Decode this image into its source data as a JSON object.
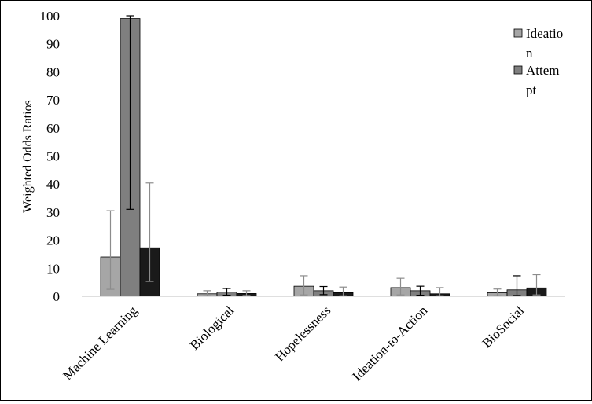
{
  "chart_data": {
    "type": "bar",
    "title": "",
    "xlabel": "",
    "ylabel": "Weighted Odds Ratios",
    "ylim": [
      0,
      100
    ],
    "yticks": [
      0,
      10,
      20,
      30,
      40,
      50,
      60,
      70,
      80,
      90,
      100
    ],
    "grid": false,
    "legend_position": "top-right",
    "categories": [
      "Machine Learning",
      "Biological",
      "Hopelessness",
      "Ideation-to-Action",
      "BioSocial"
    ],
    "series": [
      {
        "name": "Ideation",
        "color": "#a6a6a6",
        "values": [
          14,
          0.9,
          3.6,
          3.1,
          1.3
        ],
        "err_low": [
          2.5,
          0.2,
          0.5,
          0.5,
          0.2
        ],
        "err_high": [
          30.5,
          2.0,
          7.3,
          6.4,
          2.6
        ],
        "err_color": "#8c8c8c"
      },
      {
        "name": "Attempt",
        "color": "#7f7f7f",
        "values": [
          99,
          1.5,
          2.0,
          2.0,
          2.3
        ],
        "err_low": [
          31,
          0.4,
          0.6,
          0.4,
          0.3
        ],
        "err_high": [
          100,
          2.8,
          3.5,
          3.6,
          7.3
        ],
        "err_color": "#000000"
      },
      {
        "name": "",
        "color": "#1a1a1a",
        "values": [
          17.3,
          1.0,
          1.3,
          0.9,
          3.0
        ],
        "err_low": [
          5.3,
          0.3,
          0.2,
          0.2,
          0.5
        ],
        "err_high": [
          40.4,
          2.0,
          3.3,
          3.1,
          7.7
        ],
        "err_color": "#8c8c8c"
      }
    ],
    "legend": [
      {
        "lines": [
          "Ideatio",
          "n"
        ],
        "color": "#a6a6a6"
      },
      {
        "lines": [
          "Attem",
          "pt"
        ],
        "color": "#7f7f7f"
      }
    ]
  }
}
